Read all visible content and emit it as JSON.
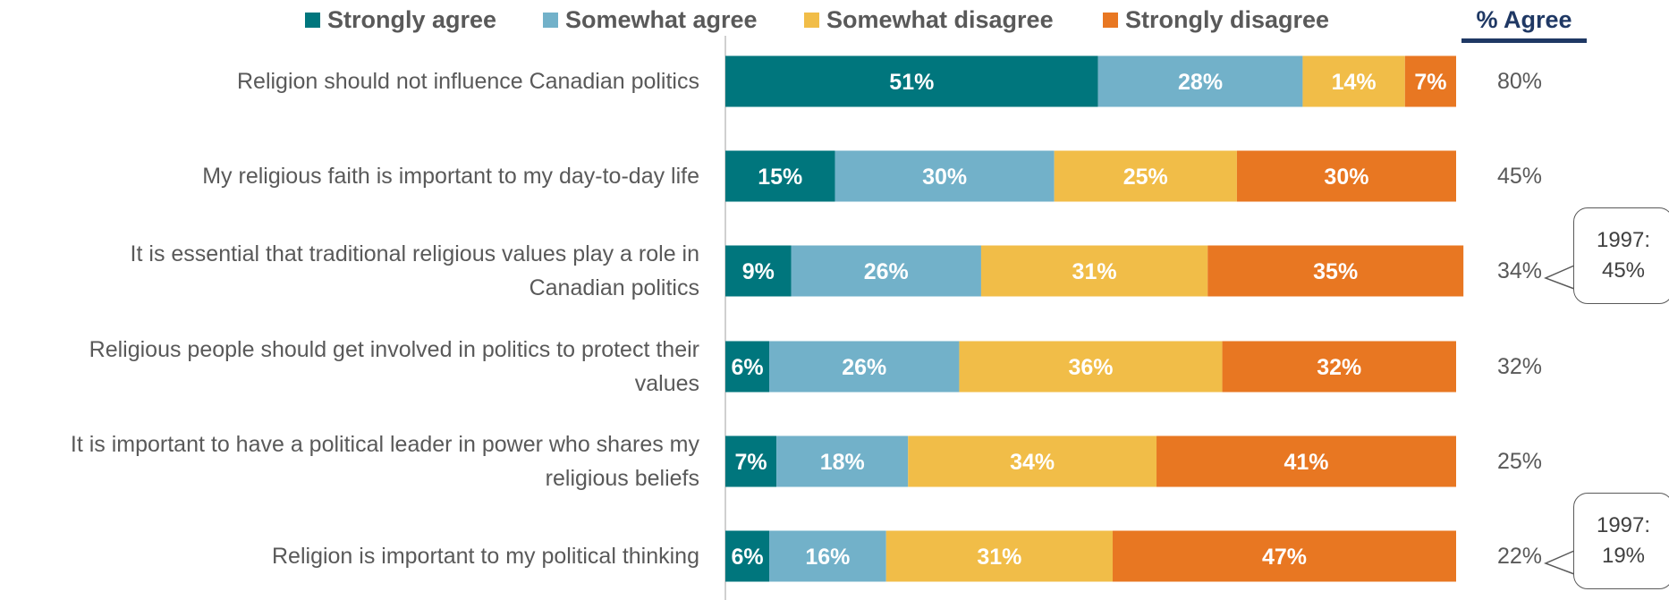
{
  "legend": [
    "Strongly agree",
    "Somewhat agree",
    "Somewhat disagree",
    "Strongly disagree"
  ],
  "agree_header": "% Agree",
  "colors": [
    "#00767d",
    "#72b1c9",
    "#f1bd48",
    "#e87722"
  ],
  "chart_data": {
    "type": "bar",
    "orientation": "horizontal",
    "stacked": true,
    "categories": [
      [
        "Religion should not influence Canadian politics"
      ],
      [
        "My religious faith is important to my day-to-day life"
      ],
      [
        "It is essential that traditional religious values play a role in",
        "Canadian politics"
      ],
      [
        "Religious people should get involved in politics to protect their",
        "values"
      ],
      [
        "It is important to have a political leader in power who shares my",
        "religious beliefs"
      ],
      [
        "Religion is important to my political thinking"
      ]
    ],
    "series": [
      {
        "name": "Strongly agree",
        "values": [
          51,
          15,
          9,
          6,
          7,
          6
        ]
      },
      {
        "name": "Somewhat agree",
        "values": [
          28,
          30,
          26,
          26,
          18,
          16
        ]
      },
      {
        "name": "Somewhat disagree",
        "values": [
          14,
          25,
          31,
          36,
          34,
          31
        ]
      },
      {
        "name": "Strongly disagree",
        "values": [
          7,
          30,
          35,
          32,
          41,
          47
        ]
      }
    ],
    "data_labels": [
      [
        "51%",
        "28%",
        "14%",
        "7%"
      ],
      [
        "15%",
        "30%",
        "25%",
        "30%"
      ],
      [
        "9%",
        "26%",
        "31%",
        "35%"
      ],
      [
        "6%",
        "26%",
        "36%",
        "32%"
      ],
      [
        "7%",
        "18%",
        "34%",
        "41%"
      ],
      [
        "6%",
        "16%",
        "31%",
        "47%"
      ]
    ],
    "percent_agree": [
      "80%",
      "45%",
      "34%",
      "32%",
      "25%",
      "22%"
    ],
    "callouts": [
      {
        "row": 2,
        "lines": [
          "1997:",
          "45%"
        ]
      },
      {
        "row": 5,
        "lines": [
          "1997:",
          "19%"
        ]
      }
    ],
    "xlim": [
      0,
      100
    ],
    "legend_position": "top"
  }
}
